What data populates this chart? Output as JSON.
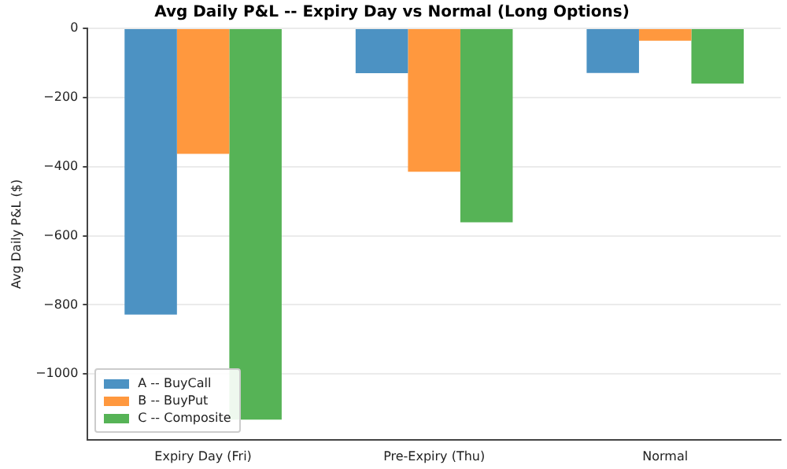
{
  "chart_data": {
    "type": "bar",
    "title": "Avg Daily P&L -- Expiry Day vs Normal (Long Options)",
    "ylabel": "Avg Daily P&L ($)",
    "categories": [
      "Expiry Day (Fri)",
      "Pre-Expiry (Thu)",
      "Normal"
    ],
    "series": [
      {
        "name": "A -- BuyCall",
        "color": "#4c92c3",
        "values": [
          -828,
          -130,
          -129
        ]
      },
      {
        "name": "B -- BuyPut",
        "color": "#ff983e",
        "values": [
          -363,
          -415,
          -36
        ]
      },
      {
        "name": "C -- Composite",
        "color": "#56b356",
        "values": [
          -1132,
          -561,
          -160
        ]
      }
    ],
    "ylim": [
      -1190,
      0
    ],
    "yticks": [
      -1000,
      -800,
      -600,
      -400,
      -200,
      0
    ],
    "grid": "y",
    "legend": "bottom left"
  }
}
